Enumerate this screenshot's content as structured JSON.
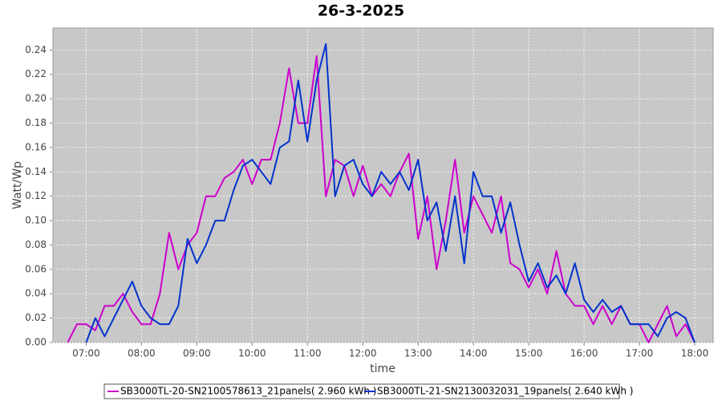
{
  "chart_data": {
    "type": "line",
    "title": "26-3-2025",
    "x_label": "time",
    "y_label": "Watt/Wp",
    "xlim": [
      "06:24",
      "18:20"
    ],
    "xticks": [
      "07:00",
      "08:00",
      "09:00",
      "10:00",
      "11:00",
      "12:00",
      "13:00",
      "14:00",
      "15:00",
      "16:00",
      "17:00",
      "18:00"
    ],
    "ylim": [
      0,
      0.258
    ],
    "yticks": [
      {
        "value": 0,
        "label": "0.00"
      },
      {
        "value": 0.02,
        "label": "0.02"
      },
      {
        "value": 0.04,
        "label": "0.04"
      },
      {
        "value": 0.06,
        "label": "0.06"
      },
      {
        "value": 0.08,
        "label": "0.08"
      },
      {
        "value": 0.1,
        "label": "0.10"
      },
      {
        "value": 0.12,
        "label": "0.12"
      },
      {
        "value": 0.14,
        "label": "0.14"
      },
      {
        "value": 0.16,
        "label": "0.16"
      },
      {
        "value": 0.18,
        "label": "0.18"
      },
      {
        "value": 0.2,
        "label": "0.20"
      },
      {
        "value": 0.22,
        "label": "0.22"
      },
      {
        "value": 0.24,
        "label": "0.24"
      }
    ],
    "grid": true,
    "legend": "bottom",
    "x": [
      "06:40",
      "06:50",
      "07:00",
      "07:10",
      "07:20",
      "07:30",
      "07:40",
      "07:50",
      "08:00",
      "08:10",
      "08:20",
      "08:30",
      "08:40",
      "08:50",
      "09:00",
      "09:10",
      "09:20",
      "09:30",
      "09:40",
      "09:50",
      "10:00",
      "10:10",
      "10:20",
      "10:30",
      "10:40",
      "10:50",
      "11:00",
      "11:10",
      "11:20",
      "11:30",
      "11:40",
      "11:50",
      "12:00",
      "12:10",
      "12:20",
      "12:30",
      "12:40",
      "12:50",
      "13:00",
      "13:10",
      "13:20",
      "13:30",
      "13:40",
      "13:50",
      "14:00",
      "14:10",
      "14:20",
      "14:30",
      "14:40",
      "14:50",
      "15:00",
      "15:10",
      "15:20",
      "15:30",
      "15:40",
      "15:50",
      "16:00",
      "16:10",
      "16:20",
      "16:30",
      "16:40",
      "16:50",
      "17:00",
      "17:10",
      "17:20",
      "17:30",
      "17:40",
      "17:50",
      "18:00"
    ],
    "series": [
      {
        "name": "SB3000TL-20-SN2100578613_21panels( 2.960 kWh )",
        "color": "#cc00cc",
        "values": [
          0,
          0.015,
          0.015,
          0.01,
          0.03,
          0.03,
          0.04,
          0.025,
          0.015,
          0.015,
          0.04,
          0.09,
          0.06,
          0.08,
          0.09,
          0.12,
          0.12,
          0.135,
          0.14,
          0.15,
          0.13,
          0.15,
          0.15,
          0.18,
          0.225,
          0.18,
          0.18,
          0.235,
          0.12,
          0.15,
          0.145,
          0.12,
          0.145,
          0.12,
          0.13,
          0.12,
          0.14,
          0.155,
          0.085,
          0.12,
          0.06,
          0.1,
          0.15,
          0.09,
          0.12,
          0.105,
          0.09,
          0.12,
          0.065,
          0.06,
          0.045,
          0.06,
          0.04,
          0.075,
          0.04,
          0.03,
          0.03,
          0.015,
          0.03,
          0.015,
          0.03,
          0.015,
          0.015,
          0,
          0.015,
          0.03,
          0.005,
          0.015,
          0
        ]
      },
      {
        "name": "SB3000TL-21-SN2130032031_19panels( 2.640 kWh )",
        "color": "#0033cc",
        "values": [
          null,
          null,
          0,
          0.02,
          0.005,
          0.02,
          0.035,
          0.05,
          0.03,
          0.02,
          0.015,
          0.015,
          0.03,
          0.085,
          0.065,
          0.08,
          0.1,
          0.1,
          0.125,
          0.145,
          0.15,
          0.14,
          0.13,
          0.16,
          0.165,
          0.215,
          0.165,
          0.215,
          0.245,
          0.12,
          0.145,
          0.15,
          0.13,
          0.12,
          0.14,
          0.13,
          0.14,
          0.125,
          0.15,
          0.1,
          0.115,
          0.075,
          0.12,
          0.065,
          0.14,
          0.12,
          0.12,
          0.09,
          0.115,
          0.08,
          0.05,
          0.065,
          0.045,
          0.055,
          0.04,
          0.065,
          0.035,
          0.025,
          0.035,
          0.025,
          0.03,
          0.015,
          0.015,
          0.015,
          0.005,
          0.02,
          0.025,
          0.02,
          0
        ]
      }
    ]
  }
}
